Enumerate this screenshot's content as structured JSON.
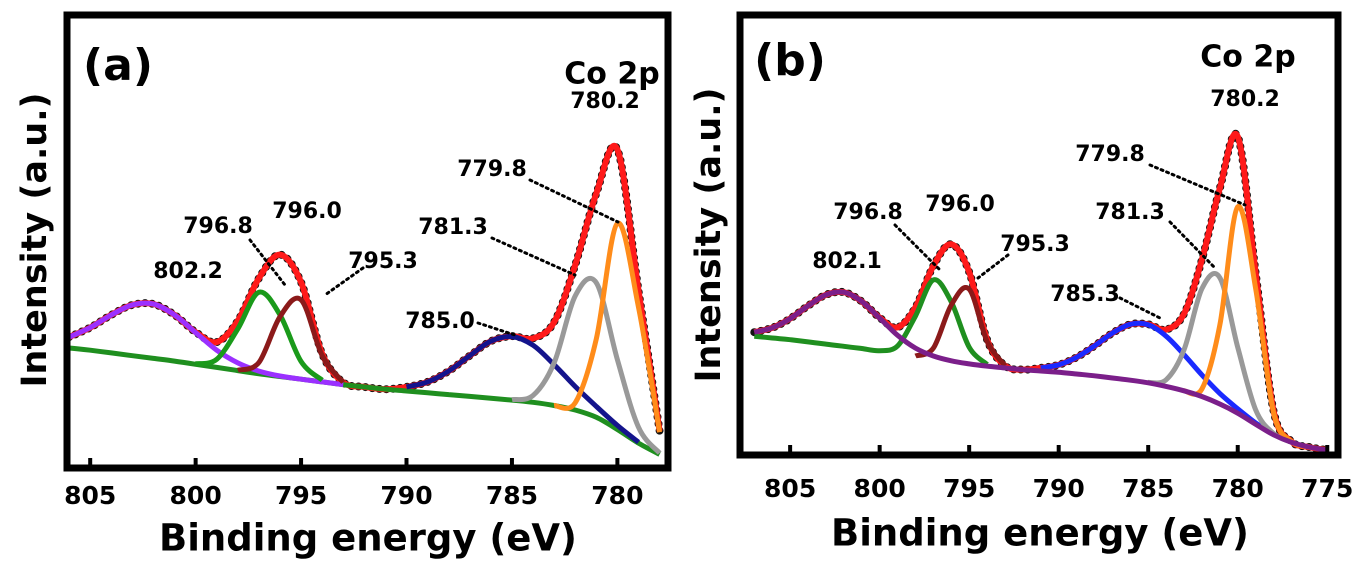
{
  "chart_data": [
    {
      "type": "line",
      "panel_label": "(a)",
      "title": "Co 2p",
      "x_label": "Binding energy (eV)",
      "y_label": "Intensity (a.u.)",
      "xlim": [
        806.1,
        777.6
      ],
      "xticks": [
        805,
        800,
        795,
        790,
        785,
        780
      ],
      "ylim": [
        0,
        100
      ],
      "x": [
        806,
        805,
        804,
        803,
        802,
        801,
        800,
        799,
        798,
        797,
        796,
        795,
        794,
        793,
        792,
        791,
        790,
        789,
        788,
        787,
        786,
        785,
        784,
        783,
        782,
        781,
        780,
        779,
        778
      ],
      "series": [
        {
          "color": "#ff1a1a",
          "values": [
            28.9,
            31.0,
            33.8,
            36.0,
            36.2,
            33.8,
            30.0,
            27.8,
            32.5,
            41.9,
            47.1,
            41.0,
            25.2,
            18.9,
            17.9,
            17.4,
            17.9,
            19.0,
            21.4,
            24.8,
            28.0,
            29.1,
            28.6,
            32.2,
            44.8,
            60.6,
            70.3,
            39.2,
            8.2
          ]
        },
        {
          "color": "#1f8f1f",
          "values": [
            26.5,
            26,
            25.4,
            24.8,
            24.2,
            23.6,
            22.9,
            22.2,
            21.5,
            20.8,
            20.2,
            19.6,
            19.0,
            18.4,
            17.9,
            17.4,
            17.0,
            16.6,
            16.2,
            15.8,
            15.4,
            15.0,
            14.5,
            13.8,
            12.8,
            11.2,
            8.5,
            5.5,
            3.0
          ]
        },
        {
          "color": "#9b30ff",
          "values": [
            28.9,
            31.0,
            33.8,
            36.0,
            36.2,
            33.8,
            29.9,
            26.0,
            23.2,
            21.4,
            20.3,
            19.6,
            19.0,
            18.4,
            null,
            null,
            null,
            null,
            null,
            null,
            null,
            null,
            null,
            null,
            null,
            null,
            null,
            null,
            null
          ]
        },
        {
          "color": "#1a9a1a",
          "values": [
            null,
            null,
            null,
            null,
            null,
            null,
            23.0,
            24.0,
            30.7,
            38.8,
            33.8,
            23.5,
            19.4,
            null,
            null,
            null,
            null,
            null,
            null,
            null,
            null,
            null,
            null,
            null,
            null,
            null,
            null,
            null,
            null
          ]
        },
        {
          "color": "#8b1a1a",
          "values": [
            null,
            null,
            null,
            null,
            null,
            null,
            null,
            null,
            21.6,
            23.3,
            33.4,
            37.1,
            24.8,
            18.9,
            null,
            null,
            null,
            null,
            null,
            null,
            null,
            null,
            null,
            null,
            null,
            null,
            null,
            null,
            null
          ]
        },
        {
          "color": "#14148c",
          "values": [
            null,
            null,
            null,
            null,
            null,
            null,
            null,
            null,
            null,
            null,
            null,
            null,
            null,
            null,
            null,
            null,
            17.9,
            19.0,
            21.4,
            24.8,
            28.0,
            29.0,
            27.1,
            22.8,
            18.0,
            13.6,
            9.4,
            5.7,
            null
          ]
        },
        {
          "color": "#999999",
          "values": [
            null,
            null,
            null,
            null,
            null,
            null,
            null,
            null,
            null,
            null,
            null,
            null,
            null,
            null,
            null,
            null,
            null,
            null,
            null,
            null,
            null,
            15.1,
            16.0,
            23.2,
            38.0,
            40.9,
            23.9,
            9.0,
            3.3
          ]
        },
        {
          "color": "#ff8c1a",
          "values": [
            null,
            null,
            null,
            null,
            null,
            null,
            null,
            null,
            null,
            null,
            null,
            null,
            null,
            null,
            null,
            null,
            null,
            null,
            null,
            null,
            null,
            null,
            null,
            13.8,
            14.4,
            28.5,
            54.0,
            35.5,
            7.9
          ]
        }
      ],
      "annotations": [
        "802.2",
        "796.8",
        "796.0",
        "795.3",
        "785.0",
        "781.3",
        "779.8",
        "780.2"
      ]
    },
    {
      "type": "line",
      "panel_label": "(b)",
      "title": "Co 2p",
      "x_label": "Binding energy (eV)",
      "y_label": "Intensity (a.u.)",
      "xlim": [
        807.8,
        774.4
      ],
      "xticks": [
        805,
        800,
        795,
        790,
        785,
        780,
        775
      ],
      "ylim": [
        0,
        100
      ],
      "x": [
        807,
        806,
        805,
        804,
        803,
        802,
        801,
        800,
        799,
        798,
        797,
        796,
        795,
        794,
        793,
        792,
        791,
        790,
        789,
        788,
        787,
        786,
        785,
        784,
        783,
        782,
        781,
        780,
        779,
        778,
        777,
        776,
        775
      ],
      "series": [
        {
          "color": "#ff1a1a",
          "values": [
            27.9,
            28.9,
            31.0,
            33.9,
            36.4,
            37.0,
            34.9,
            31.2,
            29.0,
            33.6,
            43.0,
            47.9,
            41.6,
            26.2,
            20.3,
            19.4,
            19.8,
            20.5,
            22.2,
            24.8,
            27.7,
            29.7,
            29.7,
            28.5,
            32.1,
            44.4,
            60.6,
            72.4,
            41.5,
            10.1,
            3.1,
            1.8,
            1.1
          ]
        },
        {
          "color": "#1f8f1f",
          "values": [
            27.0,
            26.6,
            26.2,
            25.7,
            25.2,
            24.7,
            24.2,
            23.7,
            24.8,
            31.6,
            39.8,
            34.8,
            24.5,
            20.6,
            null,
            null,
            null,
            null,
            null,
            null,
            null,
            null,
            null,
            null,
            null,
            null,
            null,
            null,
            null,
            null,
            null,
            null,
            null
          ]
        },
        {
          "color": "#8b1a1a",
          "values": [
            null,
            null,
            null,
            null,
            null,
            null,
            null,
            null,
            null,
            22.5,
            24.3,
            34.1,
            37.7,
            25.8,
            20.3,
            null,
            null,
            null,
            null,
            null,
            null,
            null,
            null,
            null,
            null,
            null,
            null,
            null,
            null,
            null,
            null,
            null,
            null
          ]
        },
        {
          "color": "#1a2aff",
          "values": [
            null,
            null,
            null,
            null,
            null,
            null,
            null,
            null,
            null,
            null,
            null,
            null,
            null,
            null,
            null,
            null,
            19.8,
            20.5,
            22.2,
            24.8,
            27.7,
            29.7,
            29.6,
            27.0,
            22.8,
            18.2,
            14.0,
            10.5,
            7.3,
            4.7,
            null,
            null,
            null
          ]
        },
        {
          "color": "#999999",
          "values": [
            null,
            null,
            null,
            null,
            null,
            null,
            null,
            null,
            null,
            null,
            null,
            null,
            null,
            null,
            null,
            null,
            null,
            null,
            null,
            null,
            null,
            null,
            16.5,
            17.1,
            23.9,
            37.8,
            40.3,
            24.5,
            10.3,
            4.9,
            2.9,
            null,
            null
          ]
        },
        {
          "color": "#ff8c1a",
          "values": [
            null,
            null,
            null,
            null,
            null,
            null,
            null,
            null,
            null,
            null,
            null,
            null,
            null,
            null,
            null,
            null,
            null,
            null,
            null,
            null,
            null,
            null,
            null,
            null,
            14.6,
            15.0,
            29.5,
            56.4,
            37.9,
            9.7,
            3.1,
            1.8,
            1.1
          ]
        },
        {
          "color": "#7b1f8a",
          "values": [
            27.9,
            28.9,
            31.0,
            33.9,
            36.4,
            37.0,
            34.9,
            31.1,
            27.2,
            24.3,
            22.5,
            21.4,
            20.7,
            20.2,
            19.8,
            19.4,
            19.1,
            18.8,
            18.4,
            18.0,
            17.5,
            17.0,
            16.4,
            15.6,
            14.6,
            13.3,
            11.6,
            9.5,
            7.0,
            4.6,
            2.9,
            1.8,
            1.1
          ]
        }
      ],
      "annotations": [
        "802.1",
        "796.8",
        "796.0",
        "795.3",
        "785.3",
        "781.3",
        "779.8",
        "780.2"
      ]
    }
  ]
}
